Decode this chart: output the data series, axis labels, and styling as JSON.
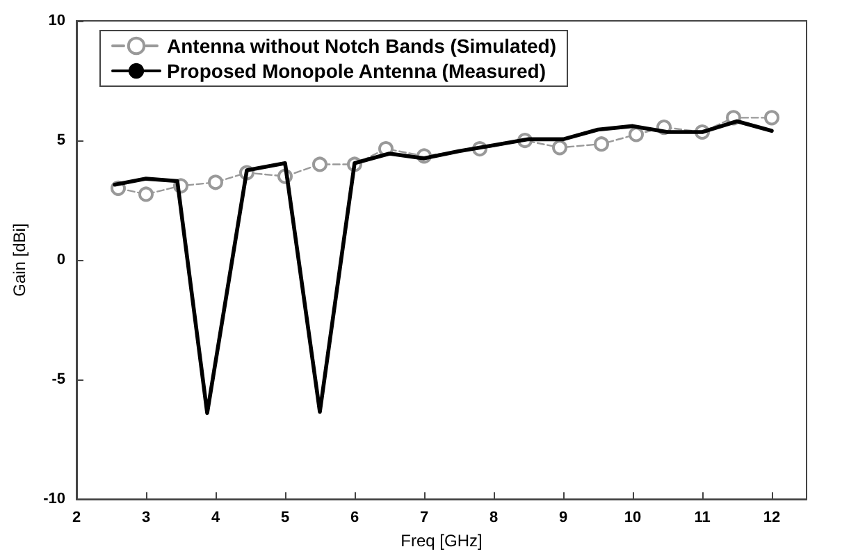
{
  "chart_data": {
    "type": "line",
    "xlabel": "Freq [GHz]",
    "ylabel": "Gain [dBi]",
    "xlim": [
      2,
      12.5
    ],
    "ylim": [
      -10,
      10
    ],
    "xticks": [
      2,
      3,
      4,
      5,
      6,
      7,
      8,
      9,
      10,
      11,
      12
    ],
    "yticks": [
      -10,
      -5,
      0,
      5,
      10
    ],
    "grid": false,
    "legend": "top left",
    "series": [
      {
        "name": "Antenna without Notch Bands (Simulated)",
        "color": "#999999",
        "marker": "circle",
        "line_style": "dashed",
        "x": [
          2.6,
          3.0,
          3.5,
          4.0,
          4.45,
          5.0,
          5.5,
          6.0,
          6.45,
          7.0,
          7.8,
          8.45,
          8.95,
          9.55,
          10.05,
          10.45,
          11.0,
          11.45,
          12.0
        ],
        "values": [
          3.0,
          2.75,
          3.1,
          3.25,
          3.65,
          3.5,
          4.0,
          4.0,
          4.65,
          4.35,
          4.65,
          5.0,
          4.7,
          4.85,
          5.25,
          5.55,
          5.35,
          5.95,
          5.95
        ]
      },
      {
        "name": "Proposed Monopole Antenna (Measured)",
        "color": "#000000",
        "marker": "none",
        "line_style": "solid",
        "x": [
          2.55,
          3.0,
          3.45,
          3.88,
          4.45,
          5.0,
          5.5,
          6.0,
          6.5,
          7.0,
          7.5,
          8.0,
          8.5,
          9.0,
          9.5,
          10.0,
          10.5,
          11.0,
          11.5,
          12.0
        ],
        "values": [
          3.15,
          3.4,
          3.3,
          -6.4,
          3.75,
          4.05,
          -6.35,
          4.05,
          4.45,
          4.25,
          4.55,
          4.8,
          5.05,
          5.05,
          5.45,
          5.6,
          5.35,
          5.35,
          5.8,
          5.4
        ]
      }
    ]
  }
}
